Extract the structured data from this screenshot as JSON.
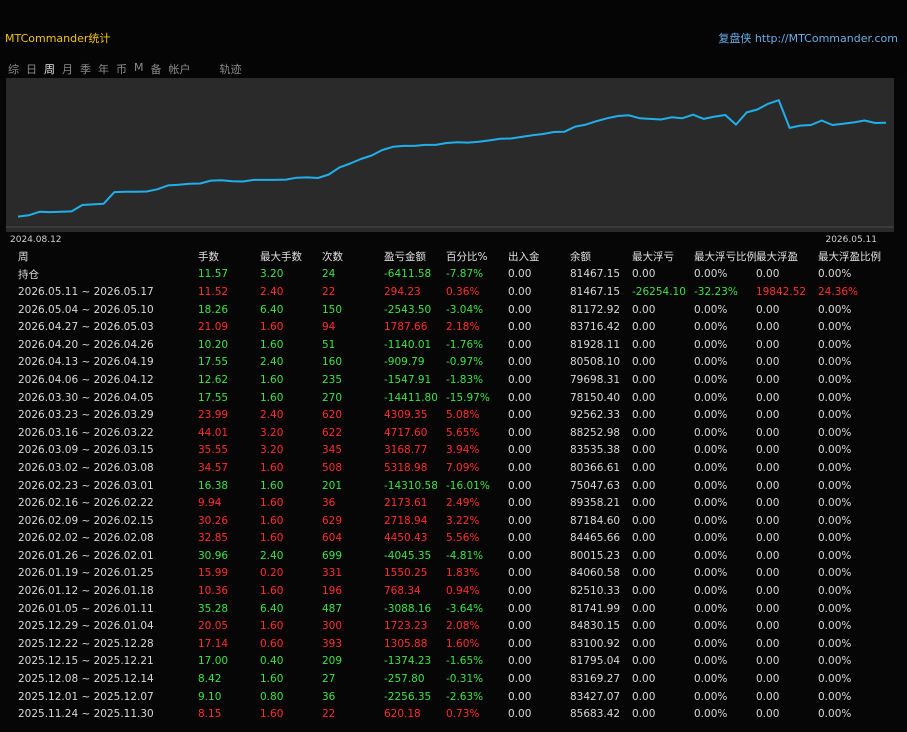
{
  "header": {
    "title": "MTCommander统计",
    "brand": "复盘侠 http://MTCommander.com"
  },
  "tabs": [
    {
      "label": "综",
      "active": false
    },
    {
      "label": "日",
      "active": false
    },
    {
      "label": "周",
      "active": true
    },
    {
      "label": "月",
      "active": false
    },
    {
      "label": "季",
      "active": false
    },
    {
      "label": "年",
      "active": false
    },
    {
      "label": "币",
      "active": false
    },
    {
      "label": "M",
      "active": false
    },
    {
      "label": "备",
      "active": false
    },
    {
      "label": "帐户",
      "active": false
    },
    {
      "label": "轨迹",
      "active": false
    }
  ],
  "chart_data": {
    "type": "line",
    "x_start": "2024.08.12",
    "x_end": "2026.05.11",
    "line_color": "#1fb0ec",
    "background": "#2a2a2a",
    "series": [
      {
        "values": [
          52000,
          52400,
          53500,
          53400,
          53500,
          53600,
          55600,
          55800,
          56000,
          59600,
          59700,
          59700,
          59800,
          60500,
          61700,
          61900,
          62200,
          62300,
          63200,
          63300,
          63000,
          62900,
          63400,
          63400,
          63400,
          63500,
          64100,
          64200,
          64000,
          65100,
          67300,
          68500,
          69900,
          71000,
          72700,
          73700,
          74000,
          74000,
          74300,
          74300,
          74900,
          75100,
          75000,
          75300,
          75700,
          76200,
          76300,
          76800,
          77300,
          77700,
          78300,
          78400,
          80000,
          80600,
          81700,
          82600,
          83300,
          83500,
          82600,
          82400,
          82200,
          82900,
          82600,
          83700,
          82400,
          83100,
          83600,
          80600,
          84400,
          85300,
          87100,
          88200,
          79600,
          80300,
          80500,
          81900,
          80500,
          80900,
          81300,
          81900,
          81100,
          81200
        ]
      }
    ],
    "ylim": [
      50000,
      92000
    ]
  },
  "table": {
    "headers": [
      "周",
      "手数",
      "最大手数",
      "次数",
      "盈亏金额",
      "百分比%",
      "出入金",
      "余额",
      "最大浮亏",
      "最大浮亏比例",
      "最大浮盈",
      "最大浮盈比例"
    ],
    "rows": [
      {
        "label": "持仓",
        "lots": "11.57",
        "max_lots": "3.20",
        "count": "24",
        "pnl": "-6411.58",
        "pct": "-7.87%",
        "io": "0.00",
        "balance": "81467.15",
        "max_dd": "0.00",
        "max_dd_pct": "0.00%",
        "max_fp": "0.00",
        "max_fp_pct": "0.00%"
      },
      {
        "label": "2026.05.11 ~ 2026.05.17",
        "lots": "11.52",
        "max_lots": "2.40",
        "count": "22",
        "pnl": "294.23",
        "pct": "0.36%",
        "io": "0.00",
        "balance": "81467.15",
        "max_dd": "-26254.10",
        "max_dd_pct": "-32.23%",
        "max_fp": "19842.52",
        "max_fp_pct": "24.36%"
      },
      {
        "label": "2026.05.04 ~ 2026.05.10",
        "lots": "18.26",
        "max_lots": "6.40",
        "count": "150",
        "pnl": "-2543.50",
        "pct": "-3.04%",
        "io": "0.00",
        "balance": "81172.92",
        "max_dd": "0.00",
        "max_dd_pct": "0.00%",
        "max_fp": "0.00",
        "max_fp_pct": "0.00%"
      },
      {
        "label": "2026.04.27 ~ 2026.05.03",
        "lots": "21.09",
        "max_lots": "1.60",
        "count": "94",
        "pnl": "1787.66",
        "pct": "2.18%",
        "io": "0.00",
        "balance": "83716.42",
        "max_dd": "0.00",
        "max_dd_pct": "0.00%",
        "max_fp": "0.00",
        "max_fp_pct": "0.00%"
      },
      {
        "label": "2026.04.20 ~ 2026.04.26",
        "lots": "10.20",
        "max_lots": "1.60",
        "count": "51",
        "pnl": "-1140.01",
        "pct": "-1.76%",
        "io": "0.00",
        "balance": "81928.11",
        "max_dd": "0.00",
        "max_dd_pct": "0.00%",
        "max_fp": "0.00",
        "max_fp_pct": "0.00%"
      },
      {
        "label": "2026.04.13 ~ 2026.04.19",
        "lots": "17.55",
        "max_lots": "2.40",
        "count": "160",
        "pnl": "-909.79",
        "pct": "-0.97%",
        "io": "0.00",
        "balance": "80508.10",
        "max_dd": "0.00",
        "max_dd_pct": "0.00%",
        "max_fp": "0.00",
        "max_fp_pct": "0.00%"
      },
      {
        "label": "2026.04.06 ~ 2026.04.12",
        "lots": "12.62",
        "max_lots": "1.60",
        "count": "235",
        "pnl": "-1547.91",
        "pct": "-1.83%",
        "io": "0.00",
        "balance": "79698.31",
        "max_dd": "0.00",
        "max_dd_pct": "0.00%",
        "max_fp": "0.00",
        "max_fp_pct": "0.00%"
      },
      {
        "label": "2026.03.30 ~ 2026.04.05",
        "lots": "17.55",
        "max_lots": "1.60",
        "count": "270",
        "pnl": "-14411.80",
        "pct": "-15.97%",
        "io": "0.00",
        "balance": "78150.40",
        "max_dd": "0.00",
        "max_dd_pct": "0.00%",
        "max_fp": "0.00",
        "max_fp_pct": "0.00%"
      },
      {
        "label": "2026.03.23 ~ 2026.03.29",
        "lots": "23.99",
        "max_lots": "2.40",
        "count": "620",
        "pnl": "4309.35",
        "pct": "5.08%",
        "io": "0.00",
        "balance": "92562.33",
        "max_dd": "0.00",
        "max_dd_pct": "0.00%",
        "max_fp": "0.00",
        "max_fp_pct": "0.00%"
      },
      {
        "label": "2026.03.16 ~ 2026.03.22",
        "lots": "44.01",
        "max_lots": "3.20",
        "count": "622",
        "pnl": "4717.60",
        "pct": "5.65%",
        "io": "0.00",
        "balance": "88252.98",
        "max_dd": "0.00",
        "max_dd_pct": "0.00%",
        "max_fp": "0.00",
        "max_fp_pct": "0.00%"
      },
      {
        "label": "2026.03.09 ~ 2026.03.15",
        "lots": "35.55",
        "max_lots": "3.20",
        "count": "345",
        "pnl": "3168.77",
        "pct": "3.94%",
        "io": "0.00",
        "balance": "83535.38",
        "max_dd": "0.00",
        "max_dd_pct": "0.00%",
        "max_fp": "0.00",
        "max_fp_pct": "0.00%"
      },
      {
        "label": "2026.03.02 ~ 2026.03.08",
        "lots": "34.57",
        "max_lots": "1.60",
        "count": "508",
        "pnl": "5318.98",
        "pct": "7.09%",
        "io": "0.00",
        "balance": "80366.61",
        "max_dd": "0.00",
        "max_dd_pct": "0.00%",
        "max_fp": "0.00",
        "max_fp_pct": "0.00%"
      },
      {
        "label": "2026.02.23 ~ 2026.03.01",
        "lots": "16.38",
        "max_lots": "1.60",
        "count": "201",
        "pnl": "-14310.58",
        "pct": "-16.01%",
        "io": "0.00",
        "balance": "75047.63",
        "max_dd": "0.00",
        "max_dd_pct": "0.00%",
        "max_fp": "0.00",
        "max_fp_pct": "0.00%"
      },
      {
        "label": "2026.02.16 ~ 2026.02.22",
        "lots": "9.94",
        "max_lots": "1.60",
        "count": "36",
        "pnl": "2173.61",
        "pct": "2.49%",
        "io": "0.00",
        "balance": "89358.21",
        "max_dd": "0.00",
        "max_dd_pct": "0.00%",
        "max_fp": "0.00",
        "max_fp_pct": "0.00%"
      },
      {
        "label": "2026.02.09 ~ 2026.02.15",
        "lots": "30.26",
        "max_lots": "1.60",
        "count": "629",
        "pnl": "2718.94",
        "pct": "3.22%",
        "io": "0.00",
        "balance": "87184.60",
        "max_dd": "0.00",
        "max_dd_pct": "0.00%",
        "max_fp": "0.00",
        "max_fp_pct": "0.00%"
      },
      {
        "label": "2026.02.02 ~ 2026.02.08",
        "lots": "32.85",
        "max_lots": "1.60",
        "count": "604",
        "pnl": "4450.43",
        "pct": "5.56%",
        "io": "0.00",
        "balance": "84465.66",
        "max_dd": "0.00",
        "max_dd_pct": "0.00%",
        "max_fp": "0.00",
        "max_fp_pct": "0.00%"
      },
      {
        "label": "2026.01.26 ~ 2026.02.01",
        "lots": "30.96",
        "max_lots": "2.40",
        "count": "699",
        "pnl": "-4045.35",
        "pct": "-4.81%",
        "io": "0.00",
        "balance": "80015.23",
        "max_dd": "0.00",
        "max_dd_pct": "0.00%",
        "max_fp": "0.00",
        "max_fp_pct": "0.00%"
      },
      {
        "label": "2026.01.19 ~ 2026.01.25",
        "lots": "15.99",
        "max_lots": "0.20",
        "count": "331",
        "pnl": "1550.25",
        "pct": "1.83%",
        "io": "0.00",
        "balance": "84060.58",
        "max_dd": "0.00",
        "max_dd_pct": "0.00%",
        "max_fp": "0.00",
        "max_fp_pct": "0.00%"
      },
      {
        "label": "2026.01.12 ~ 2026.01.18",
        "lots": "10.36",
        "max_lots": "1.60",
        "count": "196",
        "pnl": "768.34",
        "pct": "0.94%",
        "io": "0.00",
        "balance": "82510.33",
        "max_dd": "0.00",
        "max_dd_pct": "0.00%",
        "max_fp": "0.00",
        "max_fp_pct": "0.00%"
      },
      {
        "label": "2026.01.05 ~ 2026.01.11",
        "lots": "35.28",
        "max_lots": "6.40",
        "count": "487",
        "pnl": "-3088.16",
        "pct": "-3.64%",
        "io": "0.00",
        "balance": "81741.99",
        "max_dd": "0.00",
        "max_dd_pct": "0.00%",
        "max_fp": "0.00",
        "max_fp_pct": "0.00%"
      },
      {
        "label": "2025.12.29 ~ 2026.01.04",
        "lots": "20.05",
        "max_lots": "1.60",
        "count": "300",
        "pnl": "1723.23",
        "pct": "2.08%",
        "io": "0.00",
        "balance": "84830.15",
        "max_dd": "0.00",
        "max_dd_pct": "0.00%",
        "max_fp": "0.00",
        "max_fp_pct": "0.00%"
      },
      {
        "label": "2025.12.22 ~ 2025.12.28",
        "lots": "17.14",
        "max_lots": "0.60",
        "count": "393",
        "pnl": "1305.88",
        "pct": "1.60%",
        "io": "0.00",
        "balance": "83100.92",
        "max_dd": "0.00",
        "max_dd_pct": "0.00%",
        "max_fp": "0.00",
        "max_fp_pct": "0.00%"
      },
      {
        "label": "2025.12.15 ~ 2025.12.21",
        "lots": "17.00",
        "max_lots": "0.40",
        "count": "209",
        "pnl": "-1374.23",
        "pct": "-1.65%",
        "io": "0.00",
        "balance": "81795.04",
        "max_dd": "0.00",
        "max_dd_pct": "0.00%",
        "max_fp": "0.00",
        "max_fp_pct": "0.00%"
      },
      {
        "label": "2025.12.08 ~ 2025.12.14",
        "lots": "8.42",
        "max_lots": "1.60",
        "count": "27",
        "pnl": "-257.80",
        "pct": "-0.31%",
        "io": "0.00",
        "balance": "83169.27",
        "max_dd": "0.00",
        "max_dd_pct": "0.00%",
        "max_fp": "0.00",
        "max_fp_pct": "0.00%"
      },
      {
        "label": "2025.12.01 ~ 2025.12.07",
        "lots": "9.10",
        "max_lots": "0.80",
        "count": "36",
        "pnl": "-2256.35",
        "pct": "-2.63%",
        "io": "0.00",
        "balance": "83427.07",
        "max_dd": "0.00",
        "max_dd_pct": "0.00%",
        "max_fp": "0.00",
        "max_fp_pct": "0.00%"
      },
      {
        "label": "2025.11.24 ~ 2025.11.30",
        "lots": "8.15",
        "max_lots": "1.60",
        "count": "22",
        "pnl": "620.18",
        "pct": "0.73%",
        "io": "0.00",
        "balance": "85683.42",
        "max_dd": "0.00",
        "max_dd_pct": "0.00%",
        "max_fp": "0.00",
        "max_fp_pct": "0.00%"
      }
    ]
  },
  "colors": {
    "title": "#f5c400",
    "brand": "#69aee8",
    "positive": "#ff2d2d",
    "negative": "#3de346"
  }
}
